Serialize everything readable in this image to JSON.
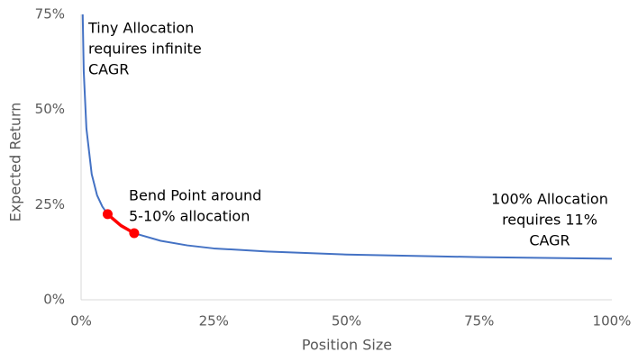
{
  "chart_data": {
    "type": "line",
    "x_label": "Position Size",
    "y_label": "Expected Return",
    "x": [
      0.3,
      0.5,
      1,
      2,
      3,
      4,
      5,
      7.5,
      10,
      15,
      20,
      25,
      35,
      50,
      75,
      100
    ],
    "series": [
      {
        "color": "#4472c4",
        "values": [
          75,
          60,
          45,
          33,
          27.5,
          24.5,
          22.5,
          19.5,
          17.5,
          15.5,
          14.3,
          13.5,
          12.7,
          11.9,
          11.2,
          10.8
        ]
      }
    ],
    "highlight": {
      "color": "#ff0000",
      "x": [
        5,
        7.5,
        10
      ],
      "values": [
        22.5,
        19.5,
        17.5
      ]
    },
    "xlim": [
      0,
      100
    ],
    "ylim": [
      0,
      75
    ],
    "xticks": [
      {
        "value": 0,
        "label": "0%"
      },
      {
        "value": 25,
        "label": "25%"
      },
      {
        "value": 50,
        "label": "50%"
      },
      {
        "value": 75,
        "label": "75%"
      },
      {
        "value": 100,
        "label": "100%"
      }
    ],
    "yticks": [
      {
        "value": 0,
        "label": "0%"
      },
      {
        "value": 25,
        "label": "25%"
      },
      {
        "value": 50,
        "label": "50%"
      },
      {
        "value": 75,
        "label": "75%"
      }
    ],
    "grid": false,
    "annotations": [
      {
        "lines": [
          "Tiny Allocation",
          "requires infinite",
          "CAGR"
        ]
      },
      {
        "lines": [
          "Bend Point around",
          "5-10% allocation"
        ]
      },
      {
        "lines": [
          "100% Allocation",
          "requires 11%",
          "CAGR"
        ]
      }
    ]
  }
}
